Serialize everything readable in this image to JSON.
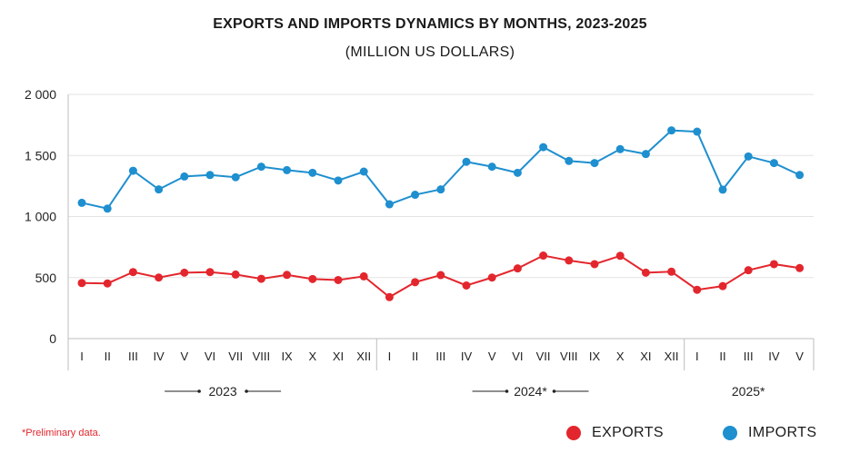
{
  "title": "EXPORTS AND IMPORTS DYNAMICS BY MONTHS, 2023-2025",
  "subtitle": "(MILLION US DOLLARS)",
  "footnote": "*Preliminary data.",
  "chart_data": {
    "type": "line",
    "title": "EXPORTS AND IMPORTS DYNAMICS BY MONTHS, 2023-2025",
    "subtitle": "(MILLION US DOLLARS)",
    "xlabel": "",
    "ylabel": "",
    "ylim": [
      0,
      2000
    ],
    "yticks": [
      0,
      500,
      1000,
      1500,
      2000
    ],
    "ytick_labels": [
      "0",
      "500",
      "1 000",
      "1 500",
      "2 000"
    ],
    "grid": true,
    "legend_position": "bottom-right",
    "categories": [
      "I",
      "II",
      "III",
      "IV",
      "V",
      "VI",
      "VII",
      "VIII",
      "IX",
      "X",
      "XI",
      "XII",
      "I",
      "II",
      "III",
      "IV",
      "V",
      "VI",
      "VII",
      "VIII",
      "IX",
      "X",
      "XI",
      "XII",
      "I",
      "II",
      "III",
      "IV",
      "V"
    ],
    "groups": [
      {
        "label": "2023",
        "count": 12
      },
      {
        "label": "2024*",
        "count": 12
      },
      {
        "label": "2025*",
        "count": 5
      }
    ],
    "series": [
      {
        "name": "EXPORTS",
        "color": "#e3262d",
        "values": [
          455,
          452,
          545,
          500,
          540,
          545,
          525,
          490,
          522,
          488,
          480,
          510,
          340,
          462,
          520,
          435,
          500,
          575,
          680,
          640,
          610,
          678,
          540,
          548,
          400,
          430,
          560,
          610,
          578
        ]
      },
      {
        "name": "IMPORTS",
        "color": "#1e8fcf",
        "values": [
          1112,
          1065,
          1375,
          1222,
          1328,
          1340,
          1322,
          1408,
          1380,
          1358,
          1295,
          1368,
          1100,
          1178,
          1222,
          1448,
          1408,
          1358,
          1568,
          1455,
          1438,
          1552,
          1512,
          1705,
          1695,
          1220,
          1492,
          1438,
          1340
        ]
      }
    ]
  }
}
